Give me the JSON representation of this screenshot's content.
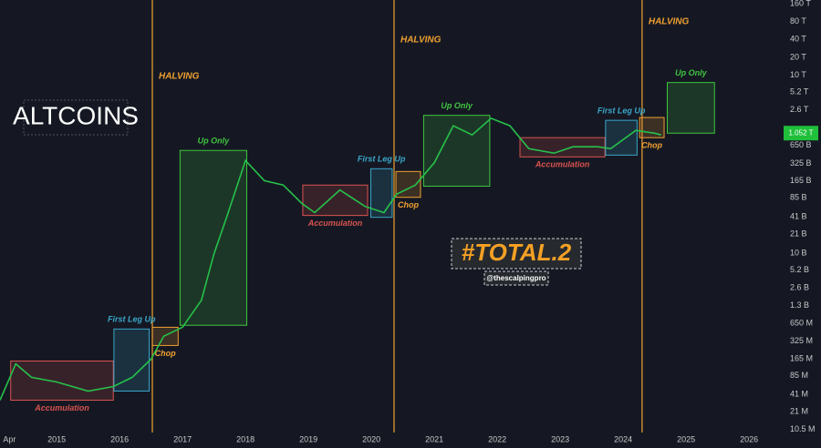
{
  "chart_data": {
    "type": "line",
    "title": "ALTCOINS",
    "subtitle": "#TOTAL.2",
    "author": "@thescalpingpro",
    "log_scale": true,
    "grid": false,
    "color": "#26c14a",
    "x": [
      2014.1,
      2014.35,
      2014.6,
      2015.0,
      2015.5,
      2015.9,
      2016.2,
      2016.5,
      2016.7,
      2017.0,
      2017.3,
      2017.5,
      2017.7,
      2018.0,
      2018.3,
      2018.6,
      2018.9,
      2019.1,
      2019.5,
      2019.9,
      2020.2,
      2020.4,
      2020.7,
      2021.0,
      2021.3,
      2021.6,
      2021.9,
      2022.2,
      2022.5,
      2022.9,
      2023.2,
      2023.6,
      2023.8,
      2024.2,
      2024.5,
      2024.6
    ],
    "values": [
      33000000,
      135000000,
      80000000,
      67000000,
      47000000,
      56000000,
      80000000,
      162000000,
      394000000,
      560000000,
      1600000000,
      9700000000,
      40000000000,
      363000000000,
      166000000000,
      140000000000,
      68000000000,
      48000000000,
      116000000000,
      61000000000,
      48000000000,
      98000000000,
      140000000000,
      336000000000,
      1400000000000,
      980000000000,
      1870000000000,
      1400000000000,
      575000000000,
      483000000000,
      620000000000,
      620000000000,
      575000000000,
      1170000000000,
      1050000000000,
      980000000000
    ],
    "last_value": 1052000000000,
    "last_value_label": "1.052 T",
    "xlim": [
      2014.1,
      2026.49
    ],
    "xticks": [
      {
        "value": 2014.25,
        "label": "Apr"
      },
      2015,
      2016,
      2017,
      2018,
      2019,
      2020,
      2021,
      2022,
      2023,
      2024,
      2025,
      2026
    ],
    "ylim": [
      9400000,
      185000000000000
    ],
    "yticks": [
      {
        "value": 160000000000000,
        "label": "160 T"
      },
      {
        "value": 80000000000000,
        "label": "80 T"
      },
      {
        "value": 40000000000000,
        "label": "40 T"
      },
      {
        "value": 20000000000000,
        "label": "20 T"
      },
      {
        "value": 10000000000000,
        "label": "10 T"
      },
      {
        "value": 5200000000000,
        "label": "5.2 T"
      },
      {
        "value": 2600000000000,
        "label": "2.6 T"
      },
      {
        "value": 650000000000,
        "label": "650 B"
      },
      {
        "value": 325000000000,
        "label": "325 B"
      },
      {
        "value": 165000000000,
        "label": "165 B"
      },
      {
        "value": 85000000000,
        "label": "85 B"
      },
      {
        "value": 41000000000,
        "label": "41 B"
      },
      {
        "value": 21000000000,
        "label": "21 B"
      },
      {
        "value": 10000000000,
        "label": "10 B"
      },
      {
        "value": 5200000000,
        "label": "5.2 B"
      },
      {
        "value": 2600000000,
        "label": "2.6 B"
      },
      {
        "value": 1300000000,
        "label": "1.3 B"
      },
      {
        "value": 650000000,
        "label": "650 M"
      },
      {
        "value": 325000000,
        "label": "325 M"
      },
      {
        "value": 165000000,
        "label": "165 M"
      },
      {
        "value": 85000000,
        "label": "85 M"
      },
      {
        "value": 41000000,
        "label": "41 M"
      },
      {
        "value": 21000000,
        "label": "21 M"
      },
      {
        "value": 10500000,
        "label": "10.5 M"
      }
    ],
    "halving_label": "HALVING",
    "halvings": [
      2016.52,
      2020.36,
      2024.3
    ],
    "zones": [
      {
        "label": "Accumulation",
        "color": "#d9534f",
        "x": [
          2014.27,
          2015.9
        ],
        "y": [
          33000000,
          151000000
        ]
      },
      {
        "label": "First Leg Up",
        "color": "#3aa6c9",
        "x": [
          2015.91,
          2016.47
        ],
        "y": [
          47000000,
          523000000
        ]
      },
      {
        "label": "Chop",
        "color": "#f0a030",
        "x": [
          2016.52,
          2016.93
        ],
        "y": [
          276000000,
          560000000
        ]
      },
      {
        "label": "Up Only",
        "color": "#3fc63f",
        "x": [
          2016.96,
          2018.02
        ],
        "y": [
          605000000,
          537000000000
        ]
      },
      {
        "label": "Accumulation",
        "color": "#d9534f",
        "x": [
          2018.91,
          2019.94
        ],
        "y": [
          43000000000,
          140000000000
        ]
      },
      {
        "label": "First Leg Up",
        "color": "#3aa6c9",
        "x": [
          2019.99,
          2020.33
        ],
        "y": [
          40000000000,
          264000000000
        ]
      },
      {
        "label": "Chop",
        "color": "#f0a030",
        "x": [
          2020.39,
          2020.78
        ],
        "y": [
          87000000000,
          237000000000
        ]
      },
      {
        "label": "Up Only",
        "color": "#3fc63f",
        "x": [
          2020.83,
          2021.88
        ],
        "y": [
          134000000000,
          2100000000000
        ]
      },
      {
        "label": "Accumulation",
        "color": "#d9534f",
        "x": [
          2022.36,
          2023.71
        ],
        "y": [
          418000000000,
          882000000000
        ]
      },
      {
        "label": "First Leg Up",
        "color": "#3aa6c9",
        "x": [
          2023.72,
          2024.22
        ],
        "y": [
          448000000000,
          1730000000000
        ]
      },
      {
        "label": "Chop",
        "color": "#f0a030",
        "x": [
          2024.26,
          2024.65
        ],
        "y": [
          882000000000,
          1930000000000
        ]
      },
      {
        "label": "Up Only",
        "color": "#3fc63f",
        "x": [
          2024.7,
          2025.45
        ],
        "y": [
          1050000000000,
          7500000000000
        ]
      }
    ]
  }
}
